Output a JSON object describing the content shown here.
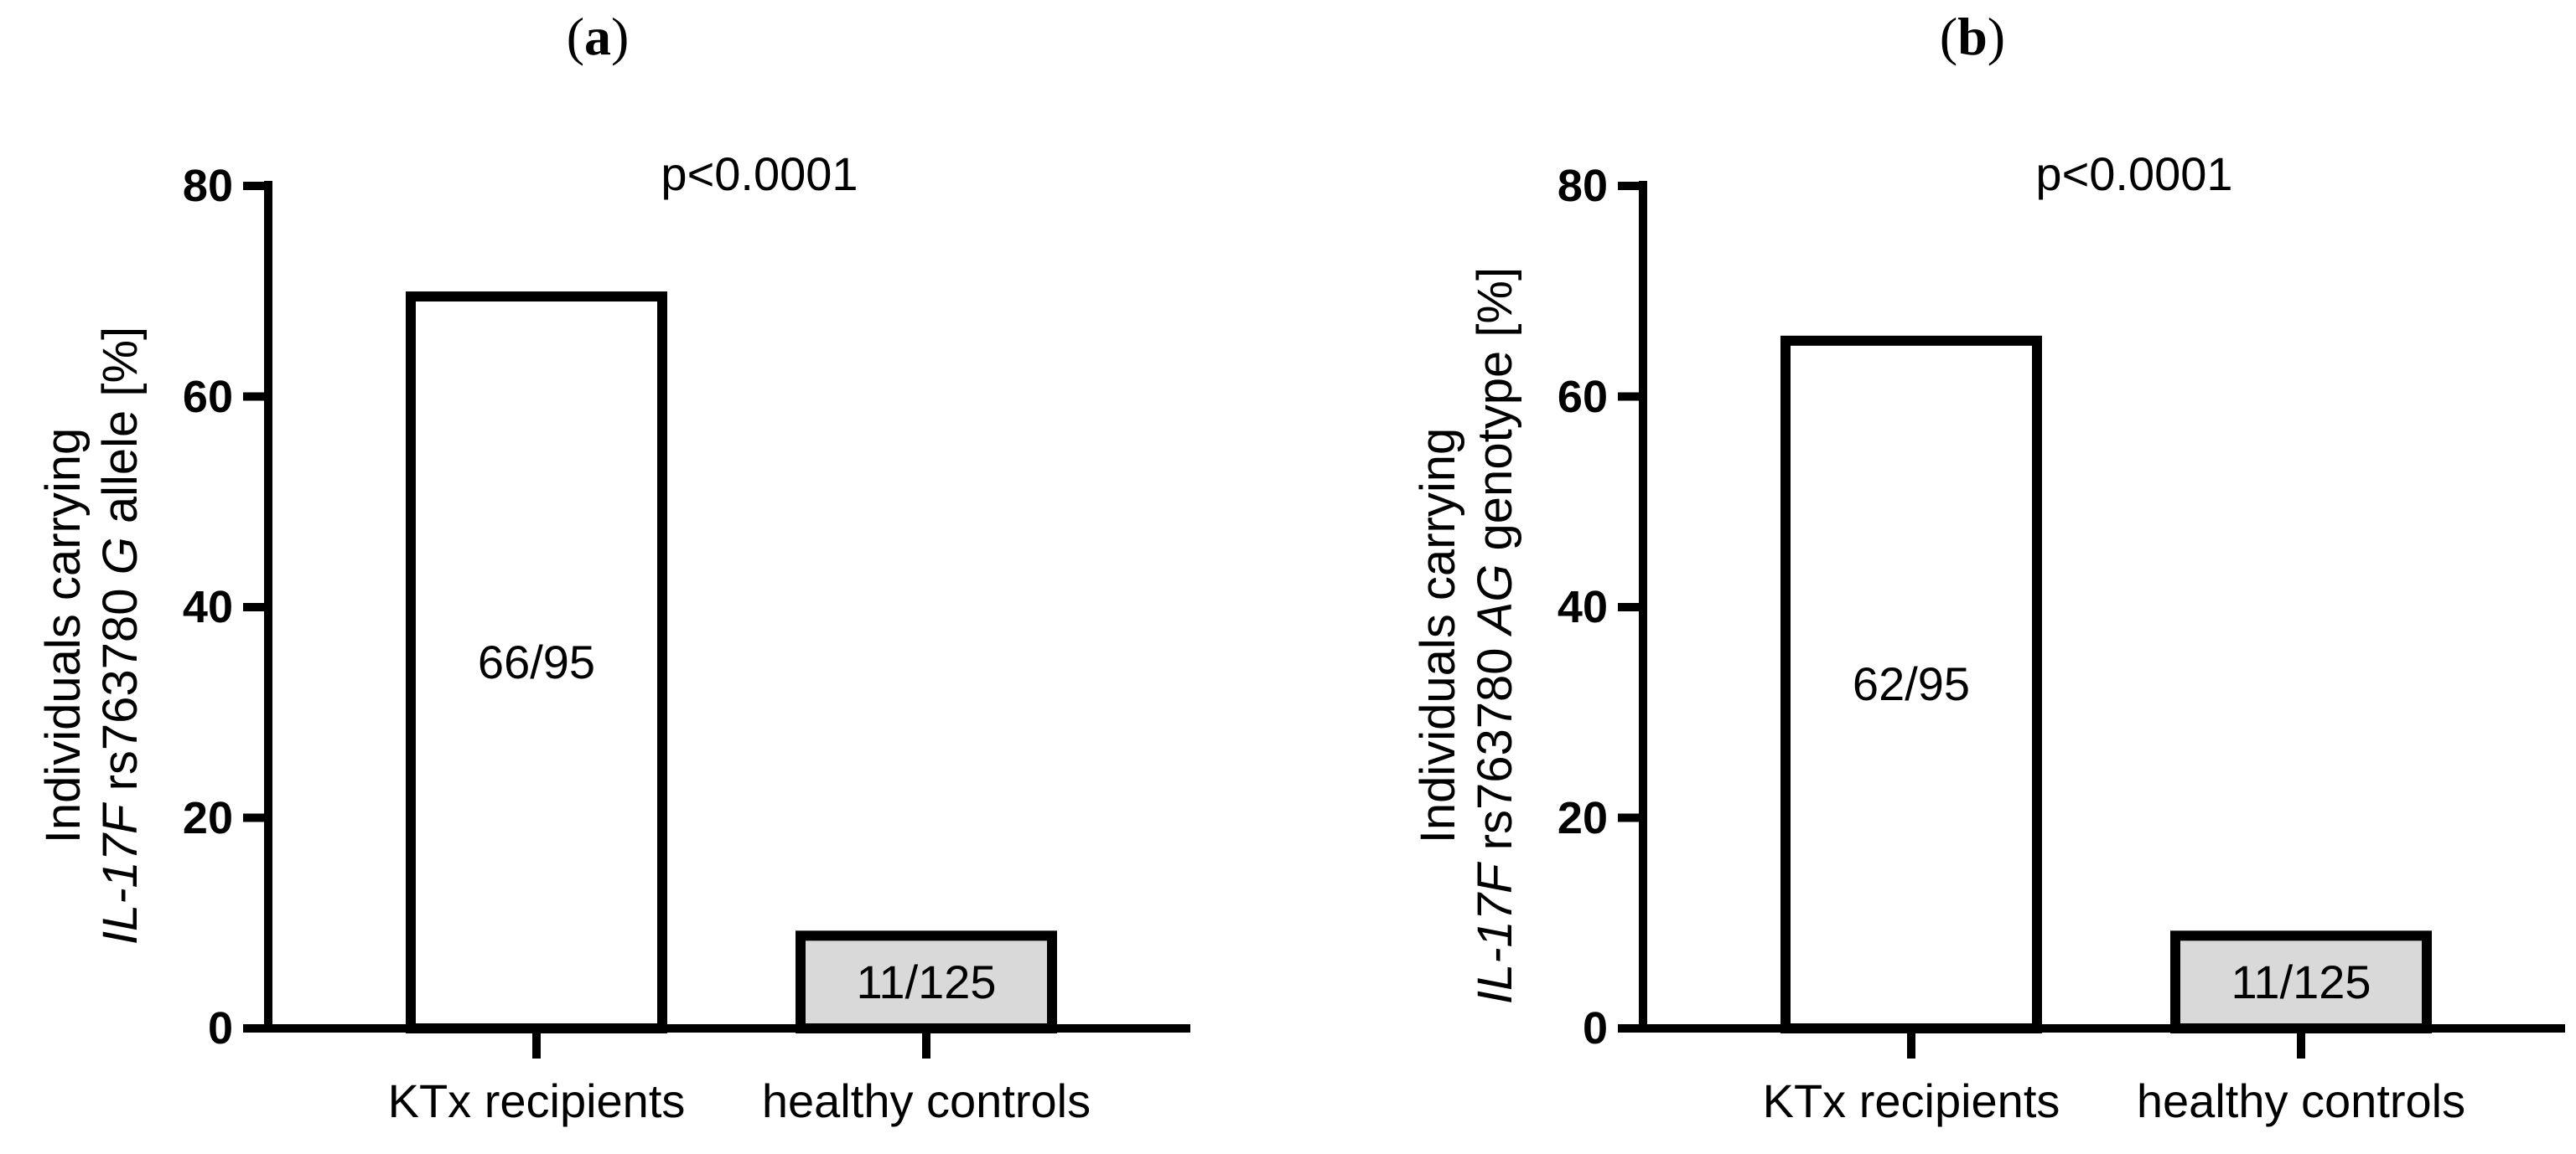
{
  "chart_data": [
    {
      "type": "bar",
      "panel_label": "a",
      "annotation": "p<0.0001",
      "ylabel": {
        "line1": "Individuals carrying",
        "gene": "IL-17F",
        "snp": "rs763780",
        "allele": "G",
        "suffix": "allele [%]"
      },
      "ylim": [
        0,
        80
      ],
      "yticks": [
        "0",
        "20",
        "40",
        "60",
        "80"
      ],
      "categories": [
        "KTx recipients",
        "healthy controls"
      ],
      "values": [
        69.5,
        8.8
      ],
      "bar_labels": [
        "66/95",
        "11/125"
      ],
      "bar_colors": [
        "#ffffff",
        "#d9d9d9"
      ]
    },
    {
      "type": "bar",
      "panel_label": "b",
      "annotation": "p<0.0001",
      "ylabel": {
        "line1": "Individuals carrying",
        "gene": "IL-17F",
        "snp": "rs763780",
        "allele": "AG",
        "suffix": "genotype [%]"
      },
      "ylim": [
        0,
        80
      ],
      "yticks": [
        "0",
        "20",
        "40",
        "60",
        "80"
      ],
      "categories": [
        "KTx recipients",
        "healthy controls"
      ],
      "values": [
        65.3,
        8.8
      ],
      "bar_labels": [
        "62/95",
        "11/125"
      ],
      "bar_colors": [
        "#ffffff",
        "#d9d9d9"
      ]
    }
  ]
}
